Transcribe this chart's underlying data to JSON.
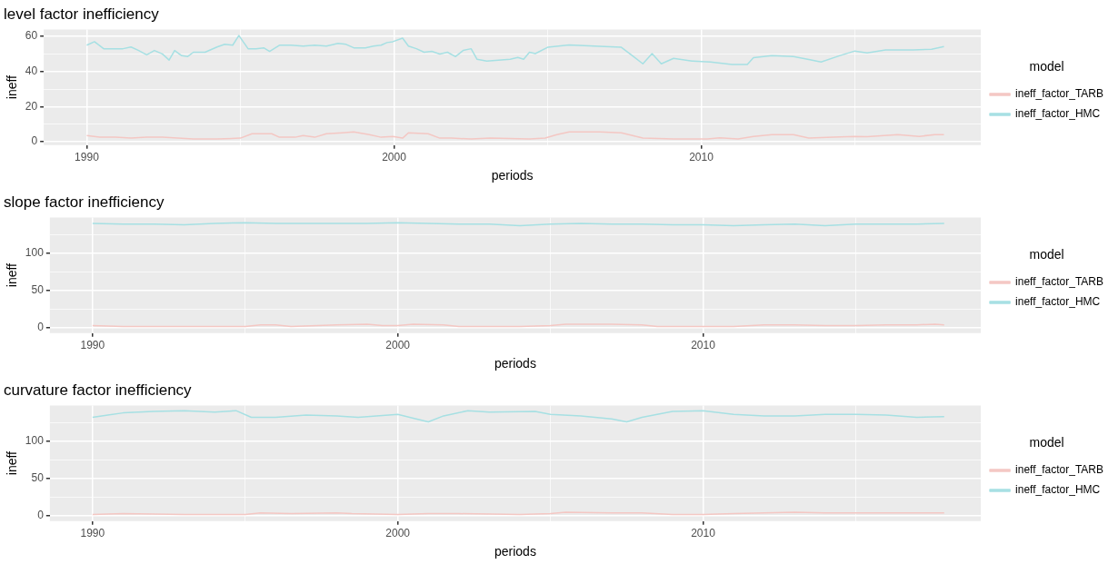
{
  "chart_data": [
    {
      "type": "line",
      "title": "level factor inefficiency",
      "xlabel": "periods",
      "ylabel": "ineff",
      "legend_title": "model",
      "legend": "right",
      "grid": true,
      "xlim": [
        1988.6,
        2019.1
      ],
      "xticks": [
        1990,
        {
          "value": 1995,
          "label": null
        },
        2000,
        {
          "value": 2005,
          "label": null
        },
        2010,
        {
          "value": 2015,
          "label": null
        }
      ],
      "ylim": [
        -2,
        64
      ],
      "yticks": [
        0,
        {
          "value": 10,
          "label": null
        },
        20,
        {
          "value": 30,
          "label": null
        },
        40,
        {
          "value": 50,
          "label": null
        },
        60
      ],
      "series": [
        {
          "name": "ineff_factor_TARB",
          "color": "#f4c7c3",
          "x": [
            1990,
            1990.42,
            1990.93,
            1991.44,
            1991.95,
            1992.46,
            1992.96,
            1993.47,
            1994.24,
            1995,
            1995.38,
            1996.02,
            1996.27,
            1996.78,
            1997.04,
            1997.42,
            1997.8,
            1998.31,
            1998.69,
            1999.2,
            1999.58,
            1999.96,
            2000.28,
            2000.47,
            2001.11,
            2001.49,
            2001.87,
            2002.51,
            2003.14,
            2004.41,
            2004.92,
            2005.3,
            2005.7,
            2006.7,
            2007.4,
            2008.1,
            2009.1,
            2010.2,
            2010.6,
            2011.2,
            2011.7,
            2012.3,
            2013,
            2013.5,
            2014.3,
            2015,
            2015.4,
            2016.4,
            2017.1,
            2017.6,
            2017.9
          ],
          "values": [
            3.5,
            2.5,
            2.5,
            2,
            2.5,
            2.5,
            2,
            1.5,
            1.5,
            2,
            4.5,
            4.5,
            2.5,
            2.5,
            3.5,
            2.5,
            4.5,
            5,
            5.5,
            4,
            2.5,
            3,
            2,
            5,
            4.5,
            2,
            2,
            1.5,
            2,
            1.5,
            2,
            4,
            5.5,
            5.5,
            5,
            2,
            1.5,
            1.5,
            2.2,
            1.5,
            3,
            4,
            4,
            2,
            2.5,
            3,
            2.8,
            4,
            3,
            4,
            4
          ]
        },
        {
          "name": "ineff_factor_HMC",
          "color": "#a6e0e3",
          "x": [
            1990,
            1990.25,
            1990.55,
            1990.93,
            1991.18,
            1991.44,
            1991.69,
            1991.95,
            1992.2,
            1992.46,
            1992.68,
            1992.86,
            1993.09,
            1993.28,
            1993.47,
            1993.85,
            1994.24,
            1994.49,
            1994.75,
            1994.95,
            1995.25,
            1995.51,
            1995.76,
            1995.95,
            1996.27,
            1996.65,
            1997.04,
            1997.42,
            1997.8,
            1998.18,
            1998.44,
            1998.69,
            1999.07,
            1999.33,
            1999.58,
            1999.77,
            1999.96,
            2000.28,
            2000.47,
            2000.73,
            2000.98,
            2001.23,
            2001.49,
            2001.74,
            2002,
            2002.25,
            2002.51,
            2002.7,
            2003.02,
            2003.4,
            2003.78,
            2004.03,
            2004.22,
            2004.41,
            2004.6,
            2005,
            2005.7,
            2006.7,
            2007.4,
            2007.8,
            2008.1,
            2008.4,
            2008.7,
            2009.1,
            2009.7,
            2010.3,
            2011,
            2011.5,
            2011.7,
            2012.3,
            2013,
            2013.5,
            2013.9,
            2014.5,
            2015,
            2015.4,
            2016,
            2016.9,
            2017.5,
            2017.9
          ],
          "values": [
            55,
            57,
            53,
            53,
            53,
            54,
            52,
            49.5,
            52,
            50,
            46.5,
            52,
            49,
            48.5,
            51,
            51,
            54,
            55.5,
            55,
            60.5,
            53,
            53,
            53.5,
            51.5,
            55,
            55,
            54.5,
            55,
            54.5,
            56,
            55.5,
            53.5,
            53.5,
            54.5,
            55,
            56.5,
            57,
            59,
            54.5,
            53,
            51,
            51.5,
            50,
            51,
            48.5,
            52,
            53,
            47,
            46,
            46.5,
            47,
            48,
            47,
            51,
            50.2,
            53.8,
            55.2,
            54.4,
            53.8,
            48.5,
            44.4,
            50.2,
            44.4,
            47.5,
            46,
            45.4,
            44,
            44,
            47.9,
            49,
            48.5,
            46.9,
            45.4,
            49,
            51.7,
            50.6,
            52.3,
            52.3,
            52.7,
            54.2
          ]
        }
      ]
    },
    {
      "type": "line",
      "title": "slope factor inefficiency",
      "xlabel": "periods",
      "ylabel": "ineff",
      "legend_title": "model",
      "legend": "right",
      "grid": true,
      "xlim": [
        1988.6,
        2019.1
      ],
      "xticks": [
        1990,
        {
          "value": 1995,
          "label": null
        },
        2000,
        {
          "value": 2005,
          "label": null
        },
        2010,
        {
          "value": 2015,
          "label": null
        }
      ],
      "ylim": [
        -7,
        148
      ],
      "yticks": [
        0,
        {
          "value": 25,
          "label": null
        },
        50,
        {
          "value": 75,
          "label": null
        },
        100,
        {
          "value": 125,
          "label": null
        }
      ],
      "series": [
        {
          "name": "ineff_factor_TARB",
          "color": "#f4c7c3",
          "x": [
            1990,
            1991,
            1993,
            1995,
            1995.5,
            1996,
            1996.5,
            1998,
            1999,
            1999.5,
            2000,
            2000.5,
            2001.5,
            2002,
            2004,
            2005,
            2005.5,
            2007,
            2008,
            2008.5,
            2010,
            2011,
            2012,
            2013,
            2014,
            2015,
            2016,
            2017,
            2017.6,
            2017.9
          ],
          "values": [
            3,
            2,
            2,
            2,
            4,
            4,
            2,
            4,
            5,
            3,
            3,
            5,
            4,
            2,
            2,
            3,
            5,
            5,
            4,
            2,
            2,
            2,
            4,
            4,
            3,
            3,
            4,
            4,
            5,
            4
          ]
        },
        {
          "name": "ineff_factor_HMC",
          "color": "#a6e0e3",
          "x": [
            1990,
            1991,
            1992,
            1993,
            1993.5,
            1994,
            1995,
            1996,
            1997,
            1998,
            1999,
            2000,
            2001,
            2002,
            2003,
            2004,
            2005,
            2006,
            2007,
            2008,
            2009,
            2010,
            2011,
            2012,
            2013,
            2014,
            2015,
            2016,
            2017,
            2017.9
          ],
          "values": [
            140,
            139,
            139,
            138,
            139,
            140,
            141,
            140,
            140,
            140,
            140,
            141,
            140,
            139,
            139,
            137,
            139,
            140,
            139,
            139,
            138,
            138,
            137,
            138,
            139,
            137,
            139,
            139,
            139,
            140
          ]
        }
      ]
    },
    {
      "type": "line",
      "title": "curvature factor inefficiency",
      "xlabel": "periods",
      "ylabel": "ineff",
      "legend_title": "model",
      "legend": "right",
      "grid": true,
      "xlim": [
        1988.6,
        2019.1
      ],
      "xticks": [
        1990,
        {
          "value": 1995,
          "label": null
        },
        2000,
        {
          "value": 2005,
          "label": null
        },
        2010,
        {
          "value": 2015,
          "label": null
        }
      ],
      "ylim": [
        -7,
        148
      ],
      "yticks": [
        0,
        {
          "value": 25,
          "label": null
        },
        50,
        {
          "value": 75,
          "label": null
        },
        100,
        {
          "value": 125,
          "label": null
        }
      ],
      "series": [
        {
          "name": "ineff_factor_TARB",
          "color": "#f4c7c3",
          "x": [
            1990,
            1991,
            1993,
            1995,
            1995.5,
            1996.5,
            1998,
            1998.5,
            2000,
            2001,
            2002,
            2004,
            2005,
            2005.5,
            2007,
            2008,
            2009,
            2010,
            2011,
            2012,
            2013,
            2014,
            2015,
            2016,
            2017,
            2017.9
          ],
          "values": [
            2,
            3,
            2,
            2,
            4,
            3,
            4,
            3,
            2,
            3,
            3,
            2,
            3,
            5,
            4,
            4,
            2,
            2,
            3,
            4,
            5,
            4,
            4,
            4,
            4,
            4
          ]
        },
        {
          "name": "ineff_factor_HMC",
          "color": "#a6e0e3",
          "x": [
            1990,
            1990.5,
            1991,
            1992,
            1993,
            1994,
            1994.7,
            1995.2,
            1996,
            1997,
            1998,
            1998.7,
            2000,
            2000.6,
            2001,
            2001.5,
            2002.3,
            2003,
            2004.5,
            2005,
            2006,
            2007,
            2007.5,
            2008,
            2008.5,
            2009,
            2010,
            2011,
            2012,
            2013,
            2014,
            2015,
            2016,
            2017,
            2017.9
          ],
          "values": [
            132,
            135,
            138,
            140,
            141,
            139,
            141,
            132,
            132,
            135,
            134,
            132,
            136,
            130,
            126,
            134,
            141,
            139,
            140,
            136,
            134,
            130,
            126,
            132,
            136,
            140,
            141,
            136,
            134,
            134,
            136,
            136,
            135,
            132,
            133
          ]
        }
      ]
    }
  ]
}
